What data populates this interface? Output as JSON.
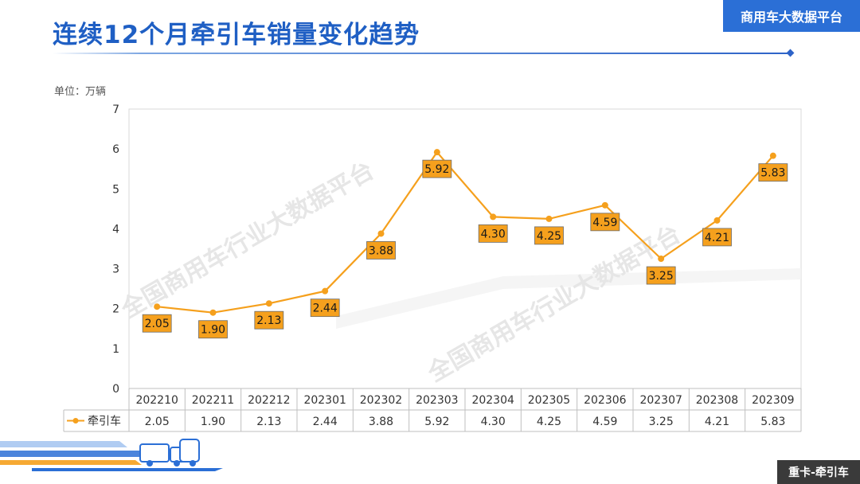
{
  "header": {
    "title": "连续12个月牵引车销量变化趋势",
    "brand_badge": "商用车大数据平台"
  },
  "unit_label": "单位：万辆",
  "watermark": "全国商用车行业大数据平台",
  "footer": {
    "badge": "重卡-牵引车"
  },
  "colors": {
    "line": "#f5a01d",
    "label_bg": "#f5a01d",
    "title": "#1f5fc4",
    "accent": "#2b6fd6"
  },
  "chart_data": {
    "type": "line",
    "title": "连续12个月牵引车销量变化趋势",
    "ylabel": "单位：万辆",
    "xlabel": "",
    "ylim": [
      0,
      7
    ],
    "yticks": [
      0,
      1,
      2,
      3,
      4,
      5,
      6,
      7
    ],
    "grid": false,
    "legend": "data-table-left",
    "categories": [
      "202210",
      "202211",
      "202212",
      "202301",
      "202302",
      "202303",
      "202304",
      "202305",
      "202306",
      "202307",
      "202308",
      "202309"
    ],
    "series": [
      {
        "name": "牵引车",
        "values": [
          2.05,
          1.9,
          2.13,
          2.44,
          3.88,
          5.92,
          4.3,
          4.25,
          4.59,
          3.25,
          4.21,
          5.83
        ],
        "labels": [
          "2.05",
          "1.90",
          "2.13",
          "2.44",
          "3.88",
          "5.92",
          "4.30",
          "4.25",
          "4.59",
          "3.25",
          "4.21",
          "5.83"
        ]
      }
    ]
  }
}
